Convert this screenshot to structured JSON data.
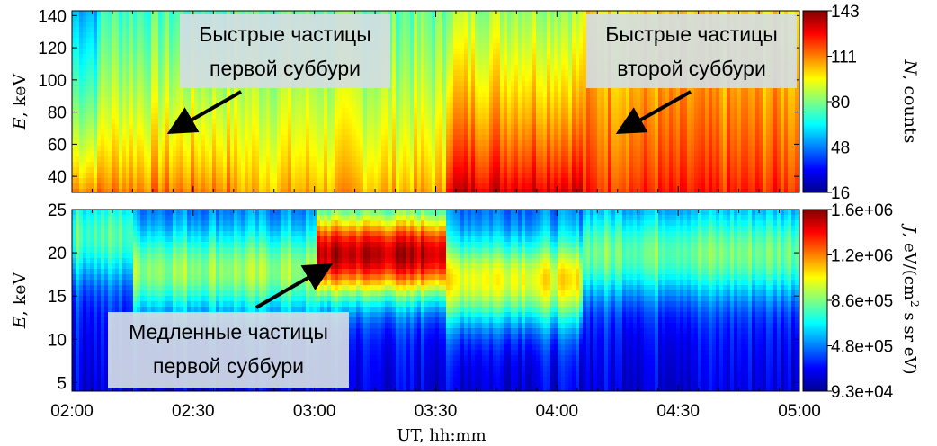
{
  "chart_data": [
    {
      "type": "heatmap",
      "panel": "top",
      "ylabel": "E,  keV",
      "ylabel_var": "E",
      "ylabel_unit": "keV",
      "ylim": [
        30,
        143
      ],
      "yticks": [
        40,
        60,
        80,
        100,
        120,
        140
      ],
      "xlim": [
        "02:00",
        "05:00"
      ],
      "colorbar": {
        "label": "N, counts",
        "label_var": "N",
        "label_unit": "counts",
        "min": 16,
        "max": 143,
        "ticks": [
          "143",
          "111",
          "80",
          "48",
          "16"
        ],
        "colormap": "jet"
      },
      "annotations": [
        {
          "text_lines": [
            "Быстрые частицы",
            "первой суббури"
          ],
          "arrow_target": {
            "time": "02:22",
            "energy": 62
          }
        },
        {
          "text_lines": [
            "Быстрые частицы",
            "второй суббури"
          ],
          "arrow_target": {
            "time": "04:15",
            "energy": 62
          }
        }
      ],
      "time_segments": [
        {
          "start": "02:00",
          "end": "02:07",
          "low_energy_level": 0.78,
          "high_energy_level": 0.32
        },
        {
          "start": "02:07",
          "end": "02:40",
          "low_energy_level": 0.78,
          "high_energy_level": 0.45
        },
        {
          "start": "02:40",
          "end": "03:32",
          "low_energy_level": 0.72,
          "high_energy_level": 0.48
        },
        {
          "start": "03:32",
          "end": "04:06",
          "low_energy_level": 0.95,
          "high_energy_level": 0.55
        },
        {
          "start": "04:06",
          "end": "05:00",
          "low_energy_level": 0.85,
          "high_energy_level": 0.65
        }
      ]
    },
    {
      "type": "heatmap",
      "panel": "bottom",
      "ylabel": "E,  keV",
      "ylabel_var": "E",
      "ylabel_unit": "keV",
      "ylim": [
        4,
        25
      ],
      "yticks": [
        5,
        10,
        15,
        20,
        25
      ],
      "xlabel": "UT,  hh:mm",
      "xticks": [
        "02:00",
        "02:30",
        "03:00",
        "03:30",
        "04:00",
        "04:30",
        "05:00"
      ],
      "xlim": [
        "02:00",
        "05:00"
      ],
      "colorbar": {
        "label": "J, eV/(cm² s sr eV)",
        "label_var": "J",
        "label_unit_main": "eV/(cm",
        "label_unit_sup": "2",
        "label_unit_tail": " s sr eV)",
        "min": 93000,
        "max": 1600000,
        "ticks": [
          "1.6e+06",
          "1.2e+06",
          "8.6e+05",
          "4.8e+05",
          "9.3e+04"
        ],
        "colormap": "jet"
      },
      "annotations": [
        {
          "text_lines": [
            "Медленные частицы",
            "первой суббури"
          ],
          "arrow_target": {
            "time": "03:05",
            "energy": 18.7
          }
        }
      ],
      "time_segments": [
        {
          "start": "02:00",
          "end": "02:15",
          "band_center_keV": 22,
          "band_level": 0.35
        },
        {
          "start": "02:15",
          "end": "03:00",
          "band_center_keV": 18,
          "band_level": 0.45
        },
        {
          "start": "03:00",
          "end": "03:32",
          "band_center_keV": 20,
          "band_level": 0.85
        },
        {
          "start": "03:32",
          "end": "04:06",
          "band_center_keV": 17,
          "band_level": 0.55
        },
        {
          "start": "04:06",
          "end": "05:00",
          "band_center_keV": 20,
          "band_level": 0.4
        }
      ]
    }
  ],
  "colors": {
    "background": "#ffffff",
    "axis": "#000000",
    "arrow": "#000000",
    "annotation_box": "#d4dde3"
  }
}
